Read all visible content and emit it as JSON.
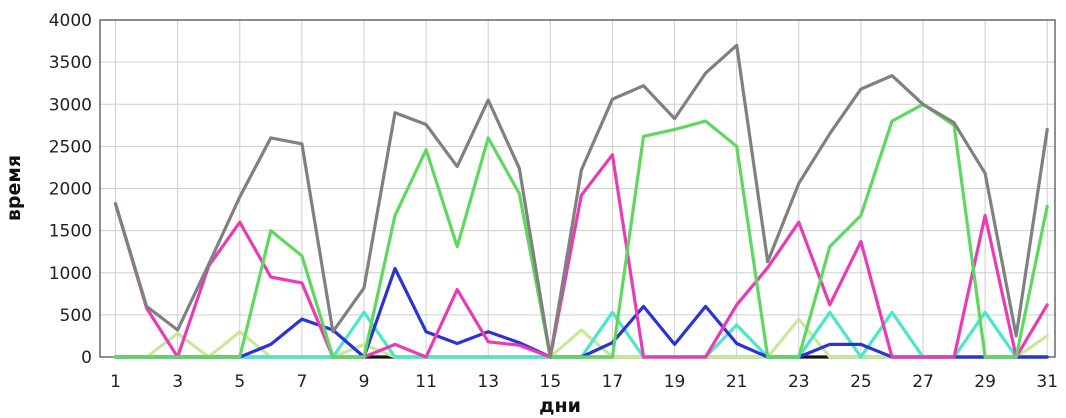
{
  "chart_data": {
    "type": "line",
    "xlabel": "дни",
    "ylabel": "время",
    "x": [
      1,
      2,
      3,
      4,
      5,
      6,
      7,
      8,
      9,
      10,
      11,
      12,
      13,
      14,
      15,
      16,
      17,
      18,
      19,
      20,
      21,
      22,
      23,
      24,
      25,
      26,
      27,
      28,
      29,
      30,
      31
    ],
    "x_ticks": [
      1,
      3,
      5,
      7,
      9,
      11,
      13,
      15,
      17,
      19,
      21,
      23,
      25,
      27,
      29,
      31
    ],
    "y_ticks": [
      0,
      500,
      1000,
      1500,
      2000,
      2500,
      3000,
      3500,
      4000
    ],
    "ylim": [
      0,
      4000
    ],
    "grid": true,
    "legend": "none",
    "series": [
      {
        "color": "#151515",
        "values": [
          0,
          0,
          0,
          0,
          0,
          0,
          0,
          0,
          0,
          0,
          0,
          0,
          0,
          0,
          0,
          0,
          0,
          0,
          0,
          0,
          0,
          0,
          0,
          0,
          0,
          0,
          0,
          0,
          0,
          0,
          0
        ]
      },
      {
        "color": "#c8e89a",
        "values": [
          0,
          0,
          280,
          0,
          300,
          0,
          0,
          0,
          150,
          0,
          0,
          0,
          0,
          0,
          0,
          320,
          0,
          0,
          0,
          0,
          0,
          0,
          450,
          0,
          0,
          0,
          0,
          0,
          0,
          0,
          250
        ]
      },
      {
        "color": "#48e8c8",
        "values": [
          0,
          0,
          0,
          0,
          0,
          0,
          0,
          0,
          530,
          0,
          0,
          0,
          0,
          0,
          0,
          0,
          530,
          0,
          0,
          0,
          380,
          0,
          0,
          530,
          0,
          530,
          0,
          0,
          530,
          0,
          0
        ]
      },
      {
        "color": "#2a32d8",
        "values": [
          0,
          0,
          0,
          0,
          0,
          150,
          450,
          320,
          0,
          1050,
          300,
          160,
          300,
          170,
          0,
          0,
          170,
          600,
          150,
          600,
          160,
          0,
          0,
          150,
          150,
          0,
          0,
          0,
          0,
          0,
          0
        ]
      },
      {
        "color": "#e83cb4",
        "values": [
          1820,
          580,
          0,
          1080,
          1600,
          950,
          880,
          0,
          0,
          150,
          0,
          800,
          180,
          140,
          0,
          1920,
          2400,
          0,
          0,
          0,
          620,
          1060,
          1600,
          620,
          1370,
          0,
          0,
          0,
          1680,
          0,
          620
        ]
      },
      {
        "color": "#5ed85e",
        "values": [
          0,
          0,
          0,
          0,
          0,
          1500,
          1200,
          0,
          0,
          1680,
          2460,
          1310,
          2600,
          1940,
          0,
          0,
          0,
          2620,
          2700,
          2800,
          2500,
          0,
          0,
          1310,
          1680,
          2800,
          3000,
          2750,
          0,
          0,
          1790
        ]
      },
      {
        "color": "#808080",
        "values": [
          1820,
          600,
          320,
          1100,
          1900,
          2600,
          2530,
          300,
          820,
          2900,
          2760,
          2260,
          3050,
          2240,
          0,
          2220,
          3060,
          3220,
          2830,
          3370,
          3700,
          1130,
          2060,
          2650,
          3180,
          3340,
          3000,
          2780,
          2180,
          250,
          2700
        ]
      }
    ]
  }
}
